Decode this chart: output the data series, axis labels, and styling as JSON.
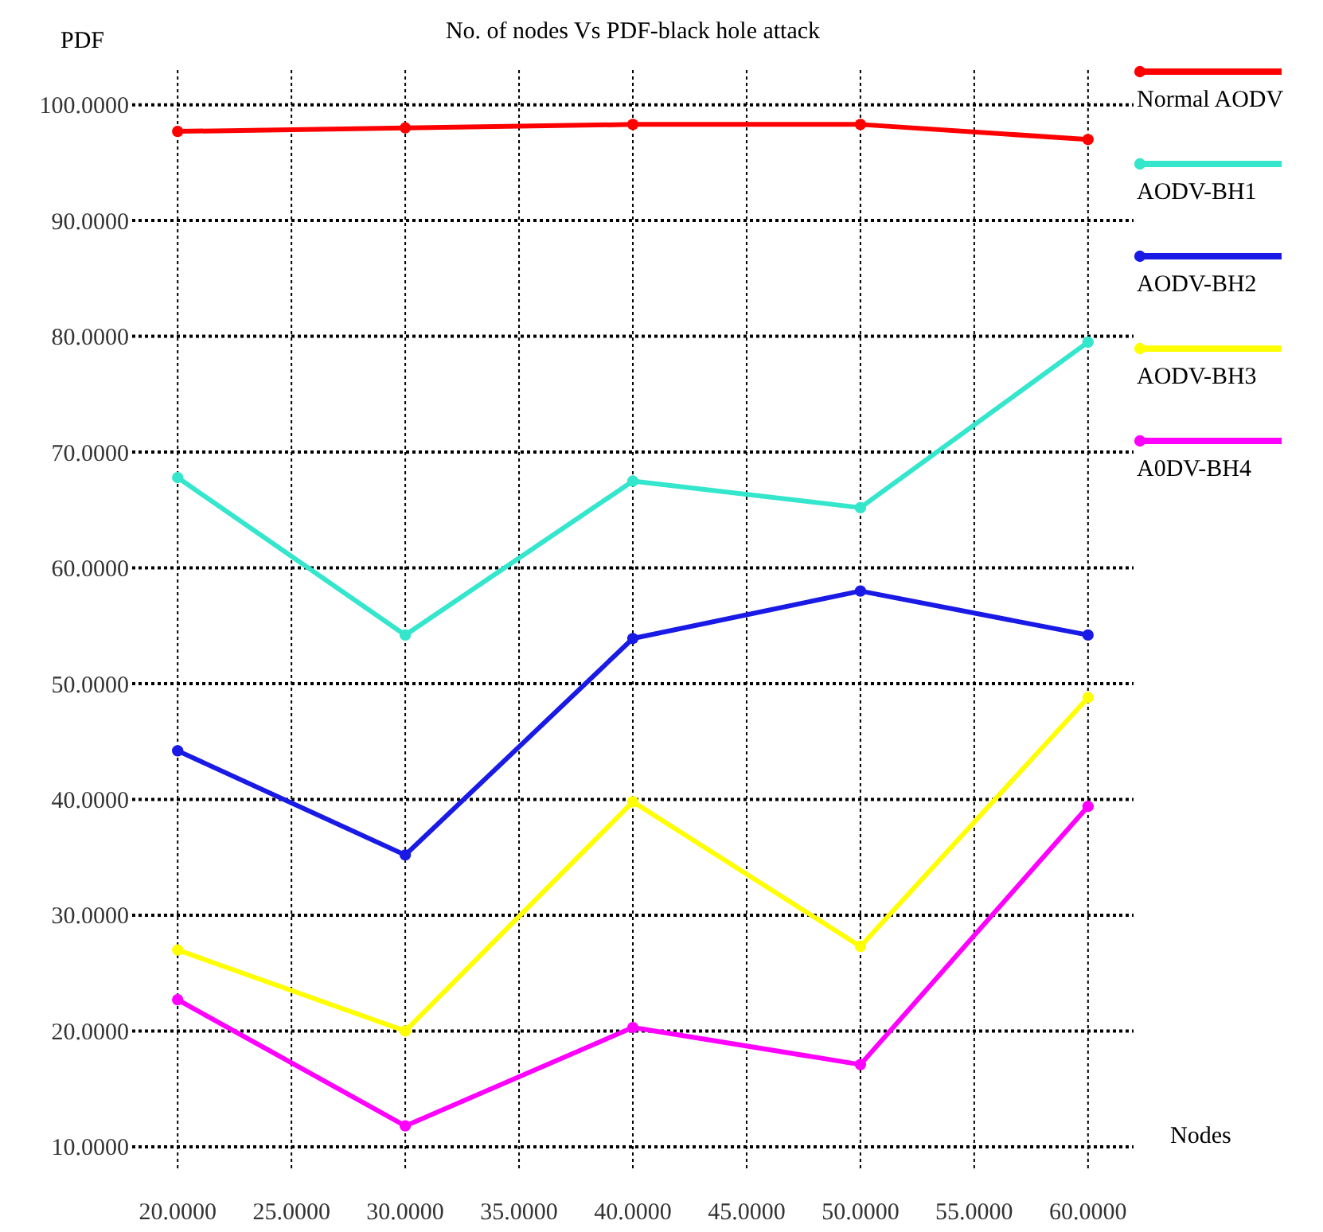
{
  "chart_data": {
    "type": "line",
    "title": "No. of nodes Vs PDF-black hole attack",
    "xlabel": "Nodes",
    "ylabel": "PDF",
    "xlim": [
      18,
      62
    ],
    "ylim": [
      8,
      103
    ],
    "xticks": [
      {
        "value": 20,
        "label": "20.0000"
      },
      {
        "value": 25,
        "label": "25.0000"
      },
      {
        "value": 30,
        "label": "30.0000"
      },
      {
        "value": 35,
        "label": "35.0000"
      },
      {
        "value": 40,
        "label": "40.0000"
      },
      {
        "value": 45,
        "label": "45.0000"
      },
      {
        "value": 50,
        "label": "50.0000"
      },
      {
        "value": 55,
        "label": "55.0000"
      },
      {
        "value": 60,
        "label": "60.0000"
      }
    ],
    "yticks": [
      {
        "value": 10,
        "label": "10.0000"
      },
      {
        "value": 20,
        "label": "20.0000"
      },
      {
        "value": 30,
        "label": "30.0000"
      },
      {
        "value": 40,
        "label": "40.0000"
      },
      {
        "value": 50,
        "label": "50.0000"
      },
      {
        "value": 60,
        "label": "60.0000"
      },
      {
        "value": 70,
        "label": "70.0000"
      },
      {
        "value": 80,
        "label": "80.0000"
      },
      {
        "value": 90,
        "label": "90.0000"
      },
      {
        "value": 100,
        "label": "100.0000"
      }
    ],
    "x": [
      20,
      30,
      40,
      50,
      60
    ],
    "series": [
      {
        "name": "Normal AODV",
        "color": "#ff0000",
        "values": [
          97.7,
          98,
          98.3,
          98.3,
          97
        ]
      },
      {
        "name": "AODV-BH1",
        "color": "#33e6cc",
        "values": [
          67.8,
          54.2,
          67.5,
          65.2,
          79.5
        ]
      },
      {
        "name": "AODV-BH2",
        "color": "#1a1ae6",
        "values": [
          44.2,
          35.2,
          53.9,
          58,
          54.2
        ]
      },
      {
        "name": "AODV-BH3",
        "color": "#ffff00",
        "values": [
          27,
          20,
          39.8,
          27.3,
          48.8
        ]
      },
      {
        "name": "A0DV-BH4",
        "color": "#ff00ff",
        "values": [
          22.7,
          11.8,
          20.3,
          17.1,
          39.4
        ]
      }
    ],
    "grid": true,
    "legend": "right",
    "marker": "circle",
    "line_style": "solid"
  }
}
